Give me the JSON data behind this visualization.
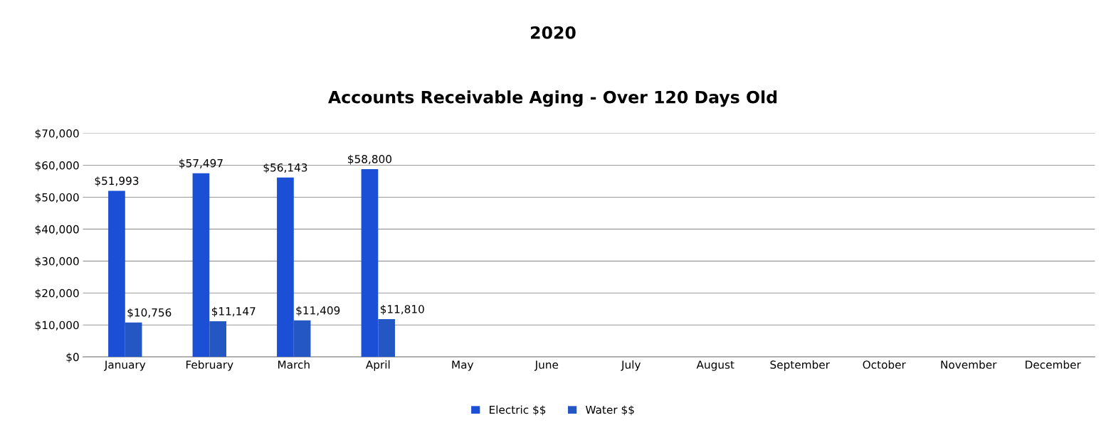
{
  "chart_data": {
    "type": "bar",
    "title": "2020",
    "subtitle": "Accounts Receivable Aging - Over 120 Days Old",
    "categories": [
      "January",
      "February",
      "March",
      "April",
      "May",
      "June",
      "July",
      "August",
      "September",
      "October",
      "November",
      "December"
    ],
    "series": [
      {
        "name": "Electric $$",
        "color": "#1a4fd6",
        "values": [
          51993,
          57497,
          56143,
          58800,
          null,
          null,
          null,
          null,
          null,
          null,
          null,
          null
        ],
        "value_labels": [
          "$51,993",
          "$57,497",
          "$56,143",
          "$58,800",
          null,
          null,
          null,
          null,
          null,
          null,
          null,
          null
        ]
      },
      {
        "name": "Water $$",
        "color": "#2456c4",
        "values": [
          10756,
          11147,
          11409,
          11810,
          null,
          null,
          null,
          null,
          null,
          null,
          null,
          null
        ],
        "value_labels": [
          "$10,756",
          "$11,147",
          "$11,409",
          "$11,810",
          null,
          null,
          null,
          null,
          null,
          null,
          null,
          null
        ]
      }
    ],
    "ylim": [
      0,
      70000
    ],
    "yticks": [
      {
        "value": 0,
        "label": "$0"
      },
      {
        "value": 10000,
        "label": "$10,000"
      },
      {
        "value": 20000,
        "label": "$20,000"
      },
      {
        "value": 30000,
        "label": "$30,000"
      },
      {
        "value": 40000,
        "label": "$40,000"
      },
      {
        "value": 50000,
        "label": "$50,000"
      },
      {
        "value": 60000,
        "label": "$60,000"
      },
      {
        "value": 70000,
        "label": "$70,000"
      }
    ],
    "grid": "y",
    "legend": "bottom"
  }
}
